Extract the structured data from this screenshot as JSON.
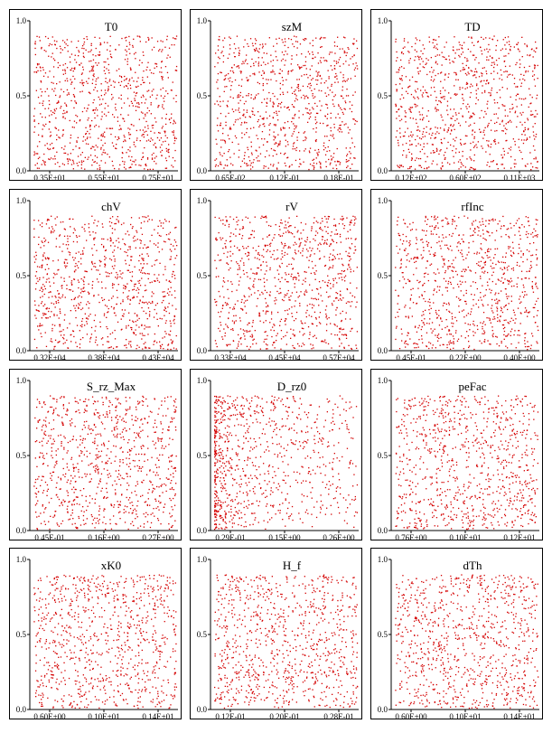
{
  "chart_data": [
    {
      "type": "scatter",
      "title": "T0",
      "yticks": [
        "1.0",
        "0.5",
        "0.0"
      ],
      "xticks": [
        "0.35E+01",
        "0.55E+01",
        "0.75E+01"
      ],
      "ylim": [
        0,
        1
      ],
      "distribution": "uniform",
      "color": "#d40000"
    },
    {
      "type": "scatter",
      "title": "szM",
      "yticks": [
        "1.0",
        "0.5",
        "0.0"
      ],
      "xticks": [
        "0.65E-02",
        "0.12E-01",
        "0.18E-01"
      ],
      "ylim": [
        0,
        1
      ],
      "distribution": "uniform",
      "color": "#d40000"
    },
    {
      "type": "scatter",
      "title": "TD",
      "yticks": [
        "1.0",
        "0.5",
        "0.0"
      ],
      "xticks": [
        "0.12E+02",
        "0.60E+02",
        "0.11E+03"
      ],
      "ylim": [
        0,
        1
      ],
      "distribution": "uniform",
      "color": "#d40000"
    },
    {
      "type": "scatter",
      "title": "chV",
      "yticks": [
        "1.0",
        "0.5",
        "0.0"
      ],
      "xticks": [
        "0.32E+04",
        "0.38E+04",
        "0.43E+04"
      ],
      "ylim": [
        0,
        1
      ],
      "distribution": "uniform",
      "color": "#d40000"
    },
    {
      "type": "scatter",
      "title": "rV",
      "yticks": [
        "1.0",
        "0.5",
        "0.0"
      ],
      "xticks": [
        "0.33E+04",
        "0.45E+04",
        "0.57E+04"
      ],
      "ylim": [
        0,
        1
      ],
      "distribution": "uniform",
      "color": "#d40000"
    },
    {
      "type": "scatter",
      "title": "rfInc",
      "yticks": [
        "1.0",
        "0.5",
        "0.0"
      ],
      "xticks": [
        "0.45E-01",
        "0.22E+00",
        "0.40E+00"
      ],
      "ylim": [
        0,
        1
      ],
      "distribution": "uniform",
      "color": "#d40000"
    },
    {
      "type": "scatter",
      "title": "S_rz_Max",
      "yticks": [
        "1.0",
        "0.5",
        "0.0"
      ],
      "xticks": [
        "0.45E-01",
        "0.16E+00",
        "0.27E+00"
      ],
      "ylim": [
        0,
        1
      ],
      "distribution": "uniform",
      "color": "#d40000"
    },
    {
      "type": "scatter",
      "title": "D_rz0",
      "yticks": [
        "1.0",
        "0.5",
        "0.0"
      ],
      "xticks": [
        "0.29E-01",
        "0.15E+00",
        "0.26E+00"
      ],
      "ylim": [
        0,
        1
      ],
      "distribution": "left-skewed",
      "color": "#d40000"
    },
    {
      "type": "scatter",
      "title": "peFac",
      "yticks": [
        "1.0",
        "0.5",
        "0.0"
      ],
      "xticks": [
        "0.76E+00",
        "0.10E+01",
        "0.12E+01"
      ],
      "ylim": [
        0,
        1
      ],
      "distribution": "uniform",
      "color": "#d40000"
    },
    {
      "type": "scatter",
      "title": "xK0",
      "yticks": [
        "1.0",
        "0.5",
        "0.0"
      ],
      "xticks": [
        "0.60E+00",
        "0.10E+01",
        "0.14E+01"
      ],
      "ylim": [
        0,
        1
      ],
      "distribution": "uniform",
      "color": "#d40000"
    },
    {
      "type": "scatter",
      "title": "H_f",
      "yticks": [
        "1.0",
        "0.5",
        "0.0"
      ],
      "xticks": [
        "0.12E-01",
        "0.20E-01",
        "0.28E-01"
      ],
      "ylim": [
        0,
        1
      ],
      "distribution": "uniform",
      "color": "#d40000"
    },
    {
      "type": "scatter",
      "title": "dTh",
      "yticks": [
        "1.0",
        "0.5",
        "0.0"
      ],
      "xticks": [
        "0.60E+00",
        "0.10E+01",
        "0.14E+01"
      ],
      "ylim": [
        0,
        1
      ],
      "distribution": "uniform",
      "color": "#d40000"
    }
  ]
}
